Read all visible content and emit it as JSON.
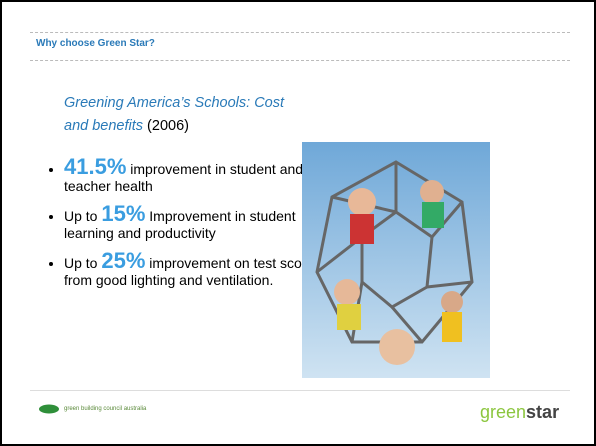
{
  "header": {
    "title": "Why choose Green Star?"
  },
  "source": {
    "title": "Greening America’s Schools: Cost and benefits",
    "year": "(2006)"
  },
  "bullets": [
    {
      "figure": "41.5%",
      "rest": "improvement in student and teacher health"
    },
    {
      "prefix": "Up to",
      "figure": "15%",
      "rest": "Improvement in student learning and productivity"
    },
    {
      "prefix": "Up to",
      "figure": "25%",
      "rest": "improvement on test scores from good lighting and ventilation."
    }
  ],
  "footer": {
    "left_logo": "green building council australia",
    "right_logo_a": "green",
    "right_logo_b": "star"
  }
}
